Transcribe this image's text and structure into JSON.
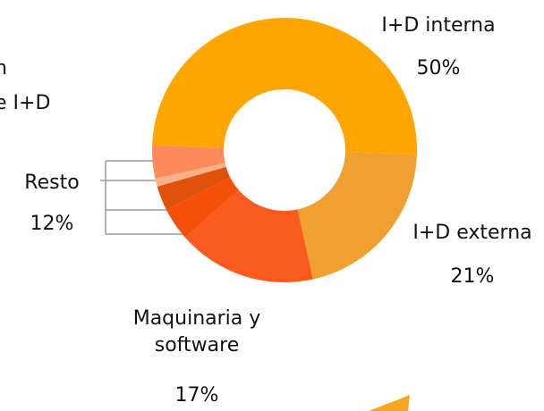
{
  "chart_data": {
    "type": "donut",
    "title_fragments": [
      "n",
      "e I+D"
    ],
    "categories": [
      "I+D interna",
      "I+D externa",
      "Maquinaria y software",
      "Resto"
    ],
    "values": [
      50,
      21,
      17,
      12
    ],
    "value_labels": [
      "50%",
      "21%",
      "17%",
      "12%"
    ],
    "colors": [
      "#ffa500",
      "#f0a030",
      "#fa5a1e",
      null
    ],
    "resto_breakdown": {
      "values": [
        4,
        3,
        1,
        4
      ],
      "colors": [
        "#f5500a",
        "#e0520c",
        "#fbb08a",
        "#fc8a5a"
      ]
    }
  }
}
